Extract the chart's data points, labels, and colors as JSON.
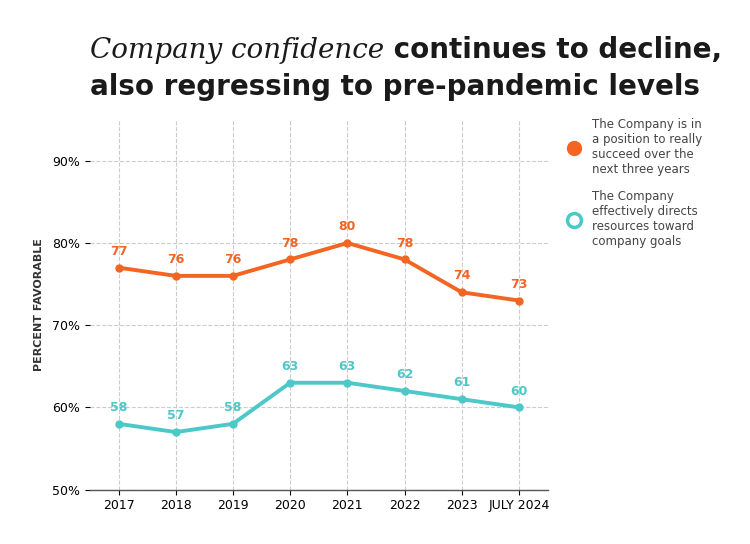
{
  "years": [
    "2017",
    "2018",
    "2019",
    "2020",
    "2021",
    "2022",
    "2023",
    "JULY 2024"
  ],
  "orange_values": [
    77,
    76,
    76,
    78,
    80,
    78,
    74,
    73
  ],
  "teal_values": [
    58,
    57,
    58,
    63,
    63,
    62,
    61,
    60
  ],
  "orange_color": "#F26522",
  "teal_color": "#4DC8C8",
  "ylim": [
    50,
    95
  ],
  "yticks": [
    50,
    60,
    70,
    80,
    90
  ],
  "ytick_labels": [
    "50%",
    "60%",
    "70%",
    "80%",
    "90%"
  ],
  "ylabel": "PERCENT FAVORABLE",
  "title_italic": "Company confidence",
  "title_normal1": " continues to decline,",
  "title_normal2": "also regressing to pre-pandemic levels",
  "legend_orange": "The Company is in\na position to really\nsucceed over the\nnext three years",
  "legend_teal": "The Company\neffectively directs\nresources toward\ncompany goals",
  "bg_color": "#FFFFFF",
  "grid_color": "#CCCCCC",
  "title_fontsize": 20,
  "label_fontsize": 9,
  "axis_label_fontsize": 8,
  "data_label_fontsize": 9
}
